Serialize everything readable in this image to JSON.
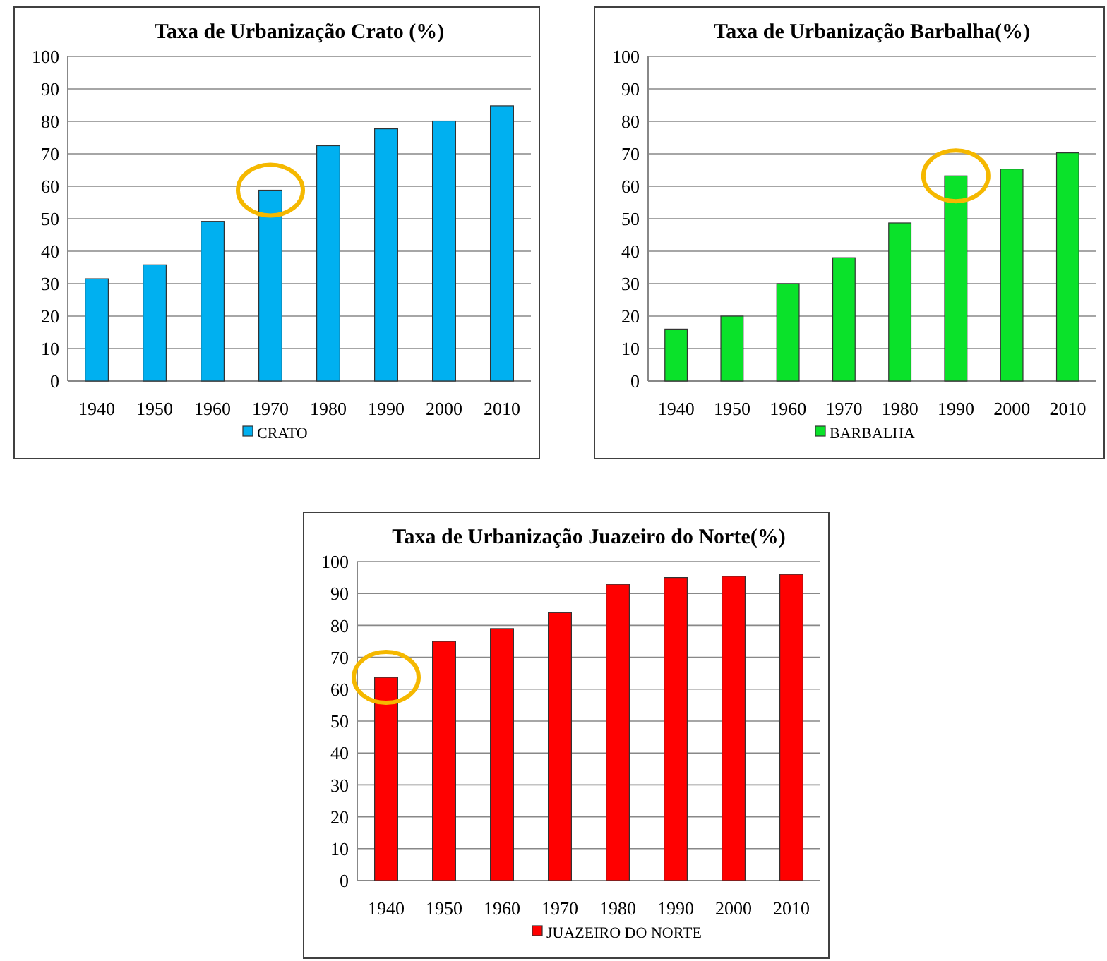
{
  "chart_data": [
    {
      "type": "bar",
      "title": "Taxa de Urbanização Crato (%)",
      "categories": [
        "1940",
        "1950",
        "1960",
        "1970",
        "1980",
        "1990",
        "2000",
        "2010"
      ],
      "series": [
        {
          "name": "CRATO",
          "color": "#00b0f0",
          "values": [
            31.5,
            35.8,
            49.2,
            58.8,
            72.5,
            77.7,
            80.1,
            84.8
          ]
        }
      ],
      "ylim": [
        0,
        100
      ],
      "yticks": [
        0,
        10,
        20,
        30,
        40,
        50,
        60,
        70,
        80,
        90,
        100
      ],
      "grid": "y",
      "legend": "bottom"
    },
    {
      "type": "bar",
      "title": "Taxa de Urbanização Barbalha(%)",
      "categories": [
        "1940",
        "1950",
        "1960",
        "1970",
        "1980",
        "1990",
        "2000",
        "2010"
      ],
      "series": [
        {
          "name": "BARBALHA",
          "color": "#0ae22a",
          "values": [
            16,
            20,
            30,
            38,
            48.7,
            63.2,
            65.3,
            70.3
          ]
        }
      ],
      "ylim": [
        0,
        100
      ],
      "yticks": [
        0,
        10,
        20,
        30,
        40,
        50,
        60,
        70,
        80,
        90,
        100
      ],
      "grid": "y",
      "legend": "bottom"
    },
    {
      "type": "bar",
      "title": "Taxa de Urbanização Juazeiro do Norte(%)",
      "categories": [
        "1940",
        "1950",
        "1960",
        "1970",
        "1980",
        "1990",
        "2000",
        "2010"
      ],
      "series": [
        {
          "name": "JUAZEIRO DO NORTE",
          "color": "#ff0000",
          "values": [
            63.7,
            75,
            79,
            84,
            92.9,
            95,
            95.4,
            96
          ]
        }
      ],
      "ylim": [
        0,
        100
      ],
      "yticks": [
        0,
        10,
        20,
        30,
        40,
        50,
        60,
        70,
        80,
        90,
        100
      ],
      "grid": "y",
      "legend": "bottom"
    }
  ]
}
